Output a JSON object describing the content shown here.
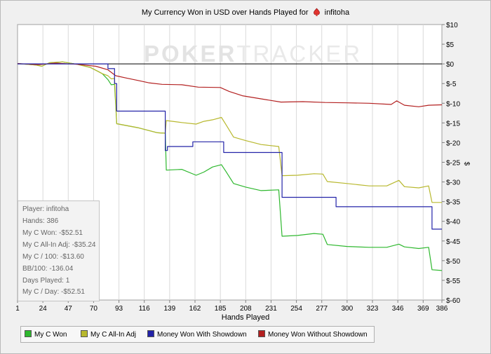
{
  "chart_data": {
    "type": "line",
    "title_prefix": "My Currency Won in USD over Hands Played for",
    "player": "infitoha",
    "watermark_main": "POKER",
    "watermark_light": "TRACKER",
    "xlabel": "Hands Played",
    "ylabel": "$",
    "xlim": [
      1,
      386
    ],
    "ylim": [
      -60,
      10
    ],
    "x_ticks": [
      1,
      24,
      47,
      70,
      93,
      116,
      139,
      162,
      185,
      208,
      231,
      254,
      277,
      300,
      323,
      346,
      369,
      386
    ],
    "y_ticks": [
      10,
      5,
      0,
      -5,
      -10,
      -15,
      -20,
      -25,
      -30,
      -35,
      -40,
      -45,
      -50,
      -55,
      -60
    ],
    "y_tick_labels": [
      "$10",
      "$5",
      "$0",
      "$-5",
      "$-10",
      "$-15",
      "$-20",
      "$-25",
      "$-30",
      "$-35",
      "$-40",
      "$-45",
      "$-50",
      "$-55",
      "$-60"
    ],
    "grid": "vertical",
    "legend_position": "bottom",
    "series": [
      {
        "name": "My C Won",
        "color": "#2eb82e",
        "points": [
          [
            1,
            0.1
          ],
          [
            18,
            -0.3
          ],
          [
            23,
            -0.6
          ],
          [
            30,
            0.3
          ],
          [
            42,
            0.5
          ],
          [
            55,
            -0.1
          ],
          [
            67,
            -0.9
          ],
          [
            74,
            -1.9
          ],
          [
            78,
            -2.5
          ],
          [
            83,
            -4.0
          ],
          [
            86,
            -5.3
          ],
          [
            89,
            -5.2
          ],
          [
            91,
            -15.2
          ],
          [
            110,
            -16.2
          ],
          [
            128,
            -17.5
          ],
          [
            135,
            -17.6
          ],
          [
            136,
            -27.0
          ],
          [
            150,
            -26.8
          ],
          [
            163,
            -28.3
          ],
          [
            170,
            -27.5
          ],
          [
            178,
            -26.2
          ],
          [
            186,
            -25.6
          ],
          [
            190,
            -27.3
          ],
          [
            197,
            -30.4
          ],
          [
            208,
            -31.3
          ],
          [
            222,
            -32.2
          ],
          [
            238,
            -32.0
          ],
          [
            241,
            -43.8
          ],
          [
            255,
            -43.6
          ],
          [
            270,
            -43.1
          ],
          [
            278,
            -43.3
          ],
          [
            282,
            -45.9
          ],
          [
            300,
            -46.4
          ],
          [
            320,
            -46.6
          ],
          [
            336,
            -46.6
          ],
          [
            347,
            -45.8
          ],
          [
            352,
            -46.5
          ],
          [
            365,
            -46.9
          ],
          [
            374,
            -46.6
          ],
          [
            377,
            -52.3
          ],
          [
            386,
            -52.5
          ]
        ]
      },
      {
        "name": "My C All-In Adj",
        "color": "#b8b82e",
        "points": [
          [
            1,
            0.1
          ],
          [
            18,
            -0.3
          ],
          [
            23,
            -0.6
          ],
          [
            30,
            0.3
          ],
          [
            42,
            0.5
          ],
          [
            55,
            -0.1
          ],
          [
            67,
            -0.9
          ],
          [
            74,
            -1.9
          ],
          [
            78,
            -2.5
          ],
          [
            83,
            -3.0
          ],
          [
            86,
            -3.8
          ],
          [
            89,
            -3.7
          ],
          [
            91,
            -15.2
          ],
          [
            110,
            -16.2
          ],
          [
            128,
            -17.5
          ],
          [
            135,
            -17.6
          ],
          [
            136,
            -14.4
          ],
          [
            150,
            -14.9
          ],
          [
            163,
            -15.3
          ],
          [
            170,
            -14.6
          ],
          [
            178,
            -14.2
          ],
          [
            186,
            -13.6
          ],
          [
            190,
            -15.4
          ],
          [
            197,
            -18.6
          ],
          [
            208,
            -19.5
          ],
          [
            222,
            -20.5
          ],
          [
            238,
            -21.0
          ],
          [
            241,
            -28.4
          ],
          [
            255,
            -28.3
          ],
          [
            270,
            -27.9
          ],
          [
            278,
            -28.0
          ],
          [
            282,
            -29.9
          ],
          [
            300,
            -30.4
          ],
          [
            320,
            -31.0
          ],
          [
            336,
            -31.0
          ],
          [
            347,
            -29.6
          ],
          [
            352,
            -31.2
          ],
          [
            365,
            -31.5
          ],
          [
            374,
            -31.0
          ],
          [
            377,
            -35.2
          ],
          [
            386,
            -35.2
          ]
        ]
      },
      {
        "name": "Money Won With Showdown",
        "color": "#2323a8",
        "points": [
          [
            1,
            0
          ],
          [
            83,
            0
          ],
          [
            83,
            -1.2
          ],
          [
            89,
            -1.2
          ],
          [
            89,
            -5.0
          ],
          [
            91,
            -5.0
          ],
          [
            91,
            -12.0
          ],
          [
            135,
            -12.0
          ],
          [
            135,
            -22.0
          ],
          [
            137,
            -22.0
          ],
          [
            137,
            -21.0
          ],
          [
            160,
            -21.0
          ],
          [
            160,
            -19.8
          ],
          [
            188,
            -19.8
          ],
          [
            188,
            -22.5
          ],
          [
            241,
            -22.5
          ],
          [
            241,
            -33.9
          ],
          [
            290,
            -33.9
          ],
          [
            290,
            -36.3
          ],
          [
            377,
            -36.3
          ],
          [
            377,
            -42.0
          ],
          [
            386,
            -42.0
          ]
        ]
      },
      {
        "name": "Money Won Without Showdown",
        "color": "#b32020",
        "points": [
          [
            1,
            0.1
          ],
          [
            20,
            -0.2
          ],
          [
            35,
            0.2
          ],
          [
            55,
            -0.1
          ],
          [
            72,
            -0.6
          ],
          [
            83,
            -1.5
          ],
          [
            90,
            -3.0
          ],
          [
            100,
            -3.6
          ],
          [
            110,
            -4.2
          ],
          [
            120,
            -4.8
          ],
          [
            132,
            -5.2
          ],
          [
            150,
            -5.3
          ],
          [
            165,
            -5.9
          ],
          [
            185,
            -6.0
          ],
          [
            193,
            -7.0
          ],
          [
            205,
            -8.1
          ],
          [
            220,
            -8.8
          ],
          [
            240,
            -9.7
          ],
          [
            260,
            -9.6
          ],
          [
            280,
            -9.8
          ],
          [
            300,
            -9.9
          ],
          [
            320,
            -10.0
          ],
          [
            340,
            -10.3
          ],
          [
            345,
            -9.4
          ],
          [
            352,
            -10.5
          ],
          [
            365,
            -10.9
          ],
          [
            374,
            -10.5
          ],
          [
            386,
            -10.4
          ]
        ]
      }
    ]
  },
  "stats": {
    "player": "Player: infitoha",
    "hands": "Hands: 386",
    "won": "My C Won: -$52.51",
    "all_in_adj": "My C All-In Adj: -$35.24",
    "per100": "My C / 100: -$13.60",
    "bb100": "BB/100: -136.04",
    "days": "Days Played: 1",
    "per_day": "My C / Day: -$52.51"
  },
  "colors": {
    "plot_bg": "#ffffff",
    "grid": "#d9d9d9",
    "zero_line": "#000000"
  },
  "icons": {
    "title": "poker-spade-icon"
  }
}
